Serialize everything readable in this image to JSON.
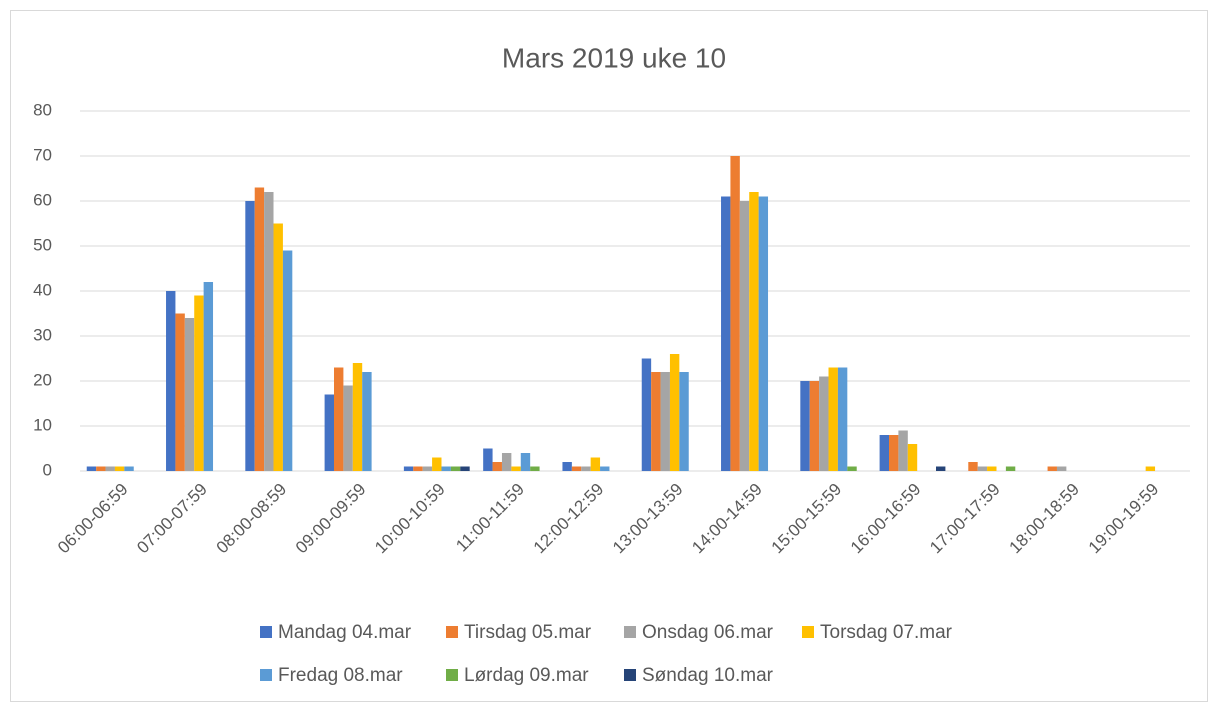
{
  "chart_data": {
    "type": "bar",
    "title": "Mars 2019 uke 10",
    "categories": [
      "06:00-06:59",
      "07:00-07:59",
      "08:00-08:59",
      "09:00-09:59",
      "10:00-10:59",
      "11:00-11:59",
      "12:00-12:59",
      "13:00-13:59",
      "14:00-14:59",
      "15:00-15:59",
      "16:00-16:59",
      "17:00-17:59",
      "18:00-18:59",
      "19:00-19:59"
    ],
    "series": [
      {
        "name": "Mandag 04.mar",
        "color": "#4472c4",
        "values": [
          1,
          40,
          60,
          17,
          1,
          5,
          2,
          25,
          61,
          20,
          8,
          0,
          0,
          0
        ]
      },
      {
        "name": "Tirsdag 05.mar",
        "color": "#ed7d31",
        "values": [
          1,
          35,
          63,
          23,
          1,
          2,
          1,
          22,
          70,
          20,
          8,
          2,
          1,
          0
        ]
      },
      {
        "name": "Onsdag 06.mar",
        "color": "#a5a5a5",
        "values": [
          1,
          34,
          62,
          19,
          1,
          4,
          1,
          22,
          60,
          21,
          9,
          1,
          1,
          0
        ]
      },
      {
        "name": "Torsdag 07.mar",
        "color": "#ffc000",
        "values": [
          1,
          39,
          55,
          24,
          3,
          1,
          3,
          26,
          62,
          23,
          6,
          1,
          0,
          1
        ]
      },
      {
        "name": "Fredag 08.mar",
        "color": "#5b9bd5",
        "values": [
          1,
          42,
          49,
          22,
          1,
          4,
          1,
          22,
          61,
          23,
          0,
          0,
          0,
          0
        ]
      },
      {
        "name": "Lørdag 09.mar",
        "color": "#70ad47",
        "values": [
          0,
          0,
          0,
          0,
          1,
          1,
          0,
          0,
          0,
          1,
          0,
          1,
          0,
          0
        ]
      },
      {
        "name": "Søndag 10.mar",
        "color": "#264478",
        "values": [
          0,
          0,
          0,
          0,
          1,
          0,
          0,
          0,
          0,
          0,
          1,
          0,
          0,
          0
        ]
      }
    ],
    "ylim": [
      0,
      80
    ],
    "yticks": [
      0,
      10,
      20,
      30,
      40,
      50,
      60,
      70,
      80
    ],
    "grid": true,
    "legend": "bottom"
  }
}
